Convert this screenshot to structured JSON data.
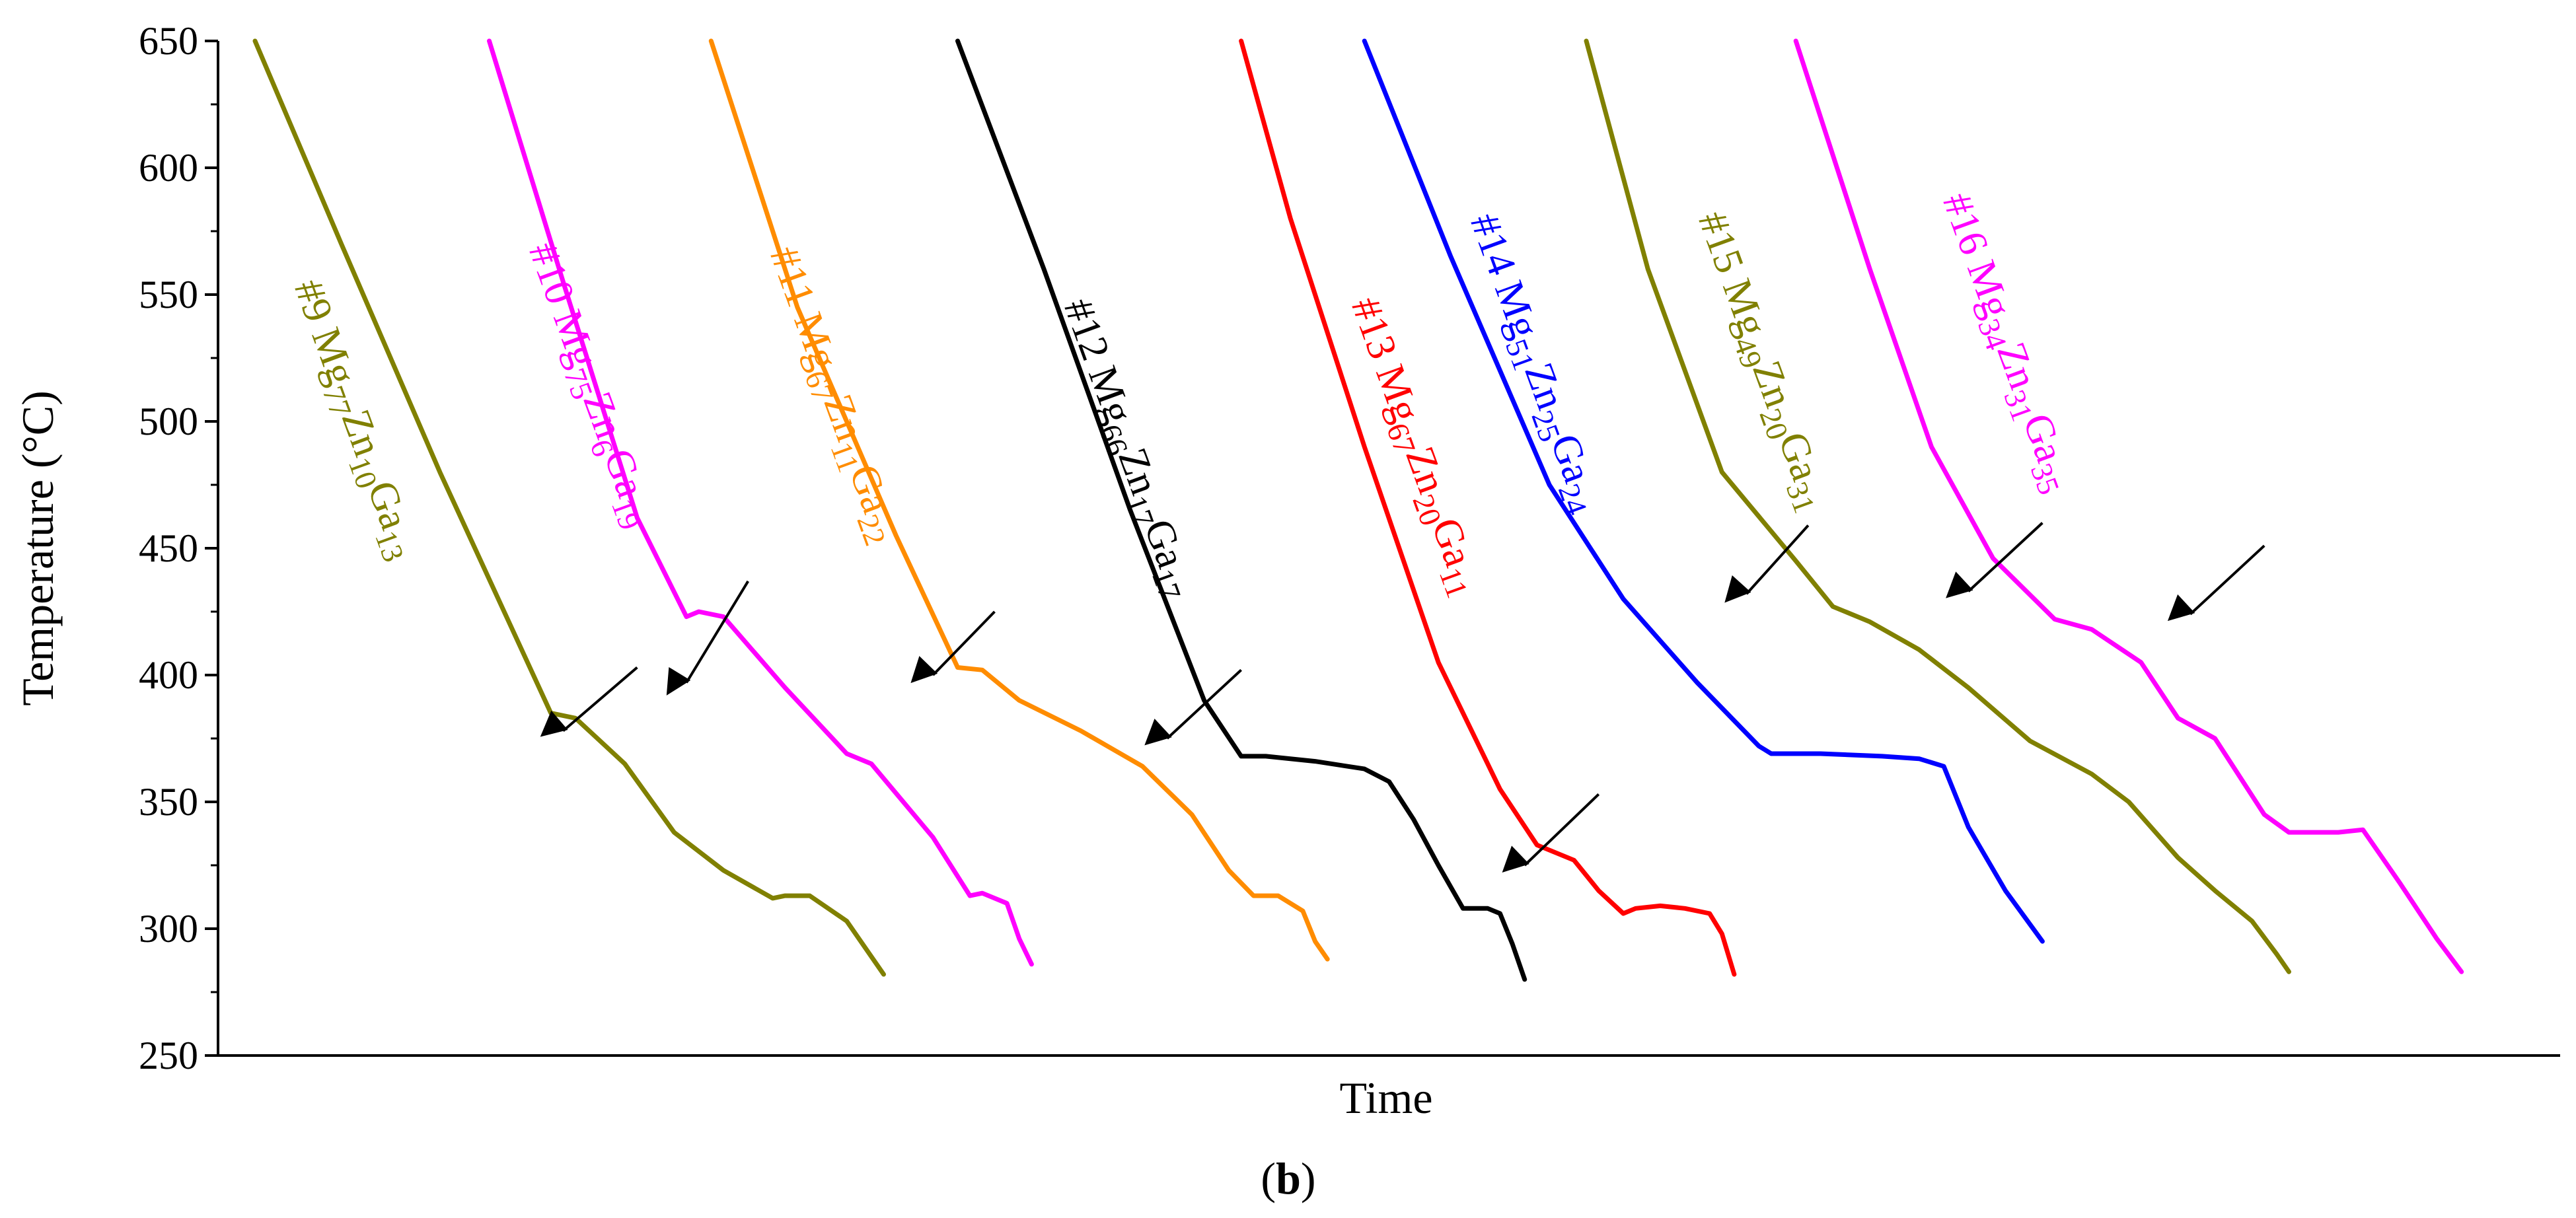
{
  "chart_data": {
    "type": "line",
    "title": "",
    "xlabel": "Time",
    "ylabel": "Temperature (°C)",
    "panel_label_open": "(",
    "panel_label_letter": "b",
    "panel_label_close": ")",
    "ylim": [
      250,
      650
    ],
    "xlim": [
      0,
      190
    ],
    "yticks": [
      250,
      300,
      350,
      400,
      450,
      500,
      550,
      600,
      650
    ],
    "grid": false,
    "legend": "none",
    "series": [
      {
        "name": "#9 Mg77Zn10Ga13",
        "color": "#808000",
        "points": [
          [
            3,
            650
          ],
          [
            10,
            570
          ],
          [
            18,
            480
          ],
          [
            27,
            385
          ],
          [
            29,
            383
          ],
          [
            33,
            365
          ],
          [
            37,
            338
          ],
          [
            41,
            323
          ],
          [
            45,
            312
          ],
          [
            46,
            313
          ],
          [
            48,
            313
          ],
          [
            51,
            303
          ],
          [
            54,
            282
          ]
        ]
      },
      {
        "name": "#10 Mg75Zn6Ga19",
        "color": "#ff00ff",
        "points": [
          [
            22,
            650
          ],
          [
            28,
            555
          ],
          [
            34,
            462
          ],
          [
            38,
            423
          ],
          [
            39,
            425
          ],
          [
            41,
            423
          ],
          [
            46,
            395
          ],
          [
            51,
            369
          ],
          [
            53,
            365
          ],
          [
            58,
            336
          ],
          [
            61,
            313
          ],
          [
            62,
            314
          ],
          [
            64,
            310
          ],
          [
            65,
            296
          ],
          [
            66,
            286
          ]
        ]
      },
      {
        "name": "#11 Mg67Zn11Ga22",
        "color": "#ff8c00",
        "points": [
          [
            40,
            650
          ],
          [
            47,
            545
          ],
          [
            55,
            455
          ],
          [
            60,
            403
          ],
          [
            62,
            402
          ],
          [
            65,
            390
          ],
          [
            70,
            378
          ],
          [
            75,
            364
          ],
          [
            79,
            345
          ],
          [
            82,
            323
          ],
          [
            84,
            313
          ],
          [
            86,
            313
          ],
          [
            88,
            307
          ],
          [
            89,
            295
          ],
          [
            90,
            288
          ]
        ]
      },
      {
        "name": "#12 Mg66Zn17Ga17",
        "color": "#000000",
        "points": [
          [
            60,
            650
          ],
          [
            67,
            560
          ],
          [
            74,
            465
          ],
          [
            80,
            390
          ],
          [
            83,
            368
          ],
          [
            85,
            368
          ],
          [
            89,
            366
          ],
          [
            93,
            363
          ],
          [
            95,
            358
          ],
          [
            97,
            343
          ],
          [
            99,
            325
          ],
          [
            101,
            308
          ],
          [
            103,
            308
          ],
          [
            104,
            306
          ],
          [
            105,
            294
          ],
          [
            106,
            280
          ]
        ]
      },
      {
        "name": "#13 Mg67Zn20Ga11",
        "color": "#ff0000",
        "points": [
          [
            83,
            650
          ],
          [
            87,
            580
          ],
          [
            93,
            490
          ],
          [
            99,
            405
          ],
          [
            104,
            355
          ],
          [
            107,
            333
          ],
          [
            110,
            327
          ],
          [
            112,
            315
          ],
          [
            114,
            306
          ],
          [
            115,
            308
          ],
          [
            117,
            309
          ],
          [
            119,
            308
          ],
          [
            121,
            306
          ],
          [
            122,
            298
          ],
          [
            123,
            282
          ]
        ]
      },
      {
        "name": "#14 Mg51Zn25Ga24",
        "color": "#0000ff",
        "points": [
          [
            93,
            650
          ],
          [
            100,
            565
          ],
          [
            108,
            475
          ],
          [
            114,
            430
          ],
          [
            120,
            397
          ],
          [
            125,
            372
          ],
          [
            126,
            369
          ],
          [
            130,
            369
          ],
          [
            135,
            368
          ],
          [
            138,
            367
          ],
          [
            140,
            364
          ],
          [
            142,
            340
          ],
          [
            145,
            315
          ],
          [
            148,
            295
          ]
        ]
      },
      {
        "name": "#15 Mg49Zn20Ga31",
        "color": "#808000",
        "points": [
          [
            111,
            650
          ],
          [
            116,
            560
          ],
          [
            122,
            480
          ],
          [
            128,
            445
          ],
          [
            131,
            427
          ],
          [
            134,
            421
          ],
          [
            138,
            410
          ],
          [
            142,
            395
          ],
          [
            147,
            374
          ],
          [
            152,
            361
          ],
          [
            155,
            350
          ],
          [
            159,
            328
          ],
          [
            162,
            315
          ],
          [
            165,
            303
          ],
          [
            167,
            290
          ],
          [
            168,
            283
          ]
        ]
      },
      {
        "name": "#16 Mg34Zn31Ga35",
        "color": "#ff00ff",
        "points": [
          [
            128,
            650
          ],
          [
            134,
            560
          ],
          [
            139,
            490
          ],
          [
            144,
            446
          ],
          [
            149,
            422
          ],
          [
            152,
            418
          ],
          [
            156,
            405
          ],
          [
            159,
            383
          ],
          [
            162,
            375
          ],
          [
            166,
            345
          ],
          [
            168,
            338
          ],
          [
            172,
            338
          ],
          [
            174,
            339
          ],
          [
            177,
            318
          ],
          [
            180,
            296
          ],
          [
            182,
            283
          ]
        ]
      }
    ],
    "annotations": [
      {
        "series": "#9 Mg77Zn10Ga13",
        "text_parts": [
          "#9 Mg",
          "77",
          "Zn",
          "10",
          "Ga",
          "13"
        ],
        "color": "#808000"
      },
      {
        "series": "#10 Mg75Zn6Ga19",
        "text_parts": [
          "#10 Mg",
          "75",
          "Zn",
          "6",
          "Ga",
          "19"
        ],
        "color": "#ff00ff"
      },
      {
        "series": "#11 Mg67Zn11Ga22",
        "text_parts": [
          "#11 Mg",
          "67",
          "Zn",
          "11",
          "Ga",
          "22"
        ],
        "color": "#ff8c00"
      },
      {
        "series": "#12 Mg66Zn17Ga17",
        "text_parts": [
          "#12 Mg",
          "66",
          "Zn",
          "17",
          "Ga",
          "17"
        ],
        "color": "#000000"
      },
      {
        "series": "#13 Mg67Zn20Ga11",
        "text_parts": [
          "#13 Mg",
          "67",
          "Zn",
          "20",
          "Ga",
          "11"
        ],
        "color": "#ff0000"
      },
      {
        "series": "#14 Mg51Zn25Ga24",
        "text_parts": [
          "#14 Mg",
          "51",
          "Zn",
          "25",
          "Ga",
          "24"
        ],
        "color": "#0000ff"
      },
      {
        "series": "#15 Mg49Zn20Ga31",
        "text_parts": [
          "#15 Mg",
          "49",
          "Zn",
          "20",
          "Ga",
          "31"
        ],
        "color": "#808000"
      },
      {
        "series": "#16 Mg34Zn31Ga35",
        "text_parts": [
          "#16 Mg",
          "34",
          "Zn",
          "31",
          "Ga",
          "35"
        ],
        "color": "#ff00ff"
      }
    ],
    "arrows": [
      {
        "tail": [
          34,
          403
        ],
        "head": [
          28,
          378
        ]
      },
      {
        "tail": [
          43,
          437
        ],
        "head": [
          38,
          397
        ]
      },
      {
        "tail": [
          63,
          425
        ],
        "head": [
          58,
          400
        ]
      },
      {
        "tail": [
          83,
          402
        ],
        "head": [
          77,
          375
        ]
      },
      {
        "tail": [
          112,
          353
        ],
        "head": [
          106,
          325
        ]
      },
      {
        "tail": [
          129,
          459
        ],
        "head": [
          124,
          432
        ]
      },
      {
        "tail": [
          148,
          460
        ],
        "head": [
          142,
          433
        ]
      },
      {
        "tail": [
          166,
          451
        ],
        "head": [
          160,
          424
        ]
      }
    ]
  }
}
